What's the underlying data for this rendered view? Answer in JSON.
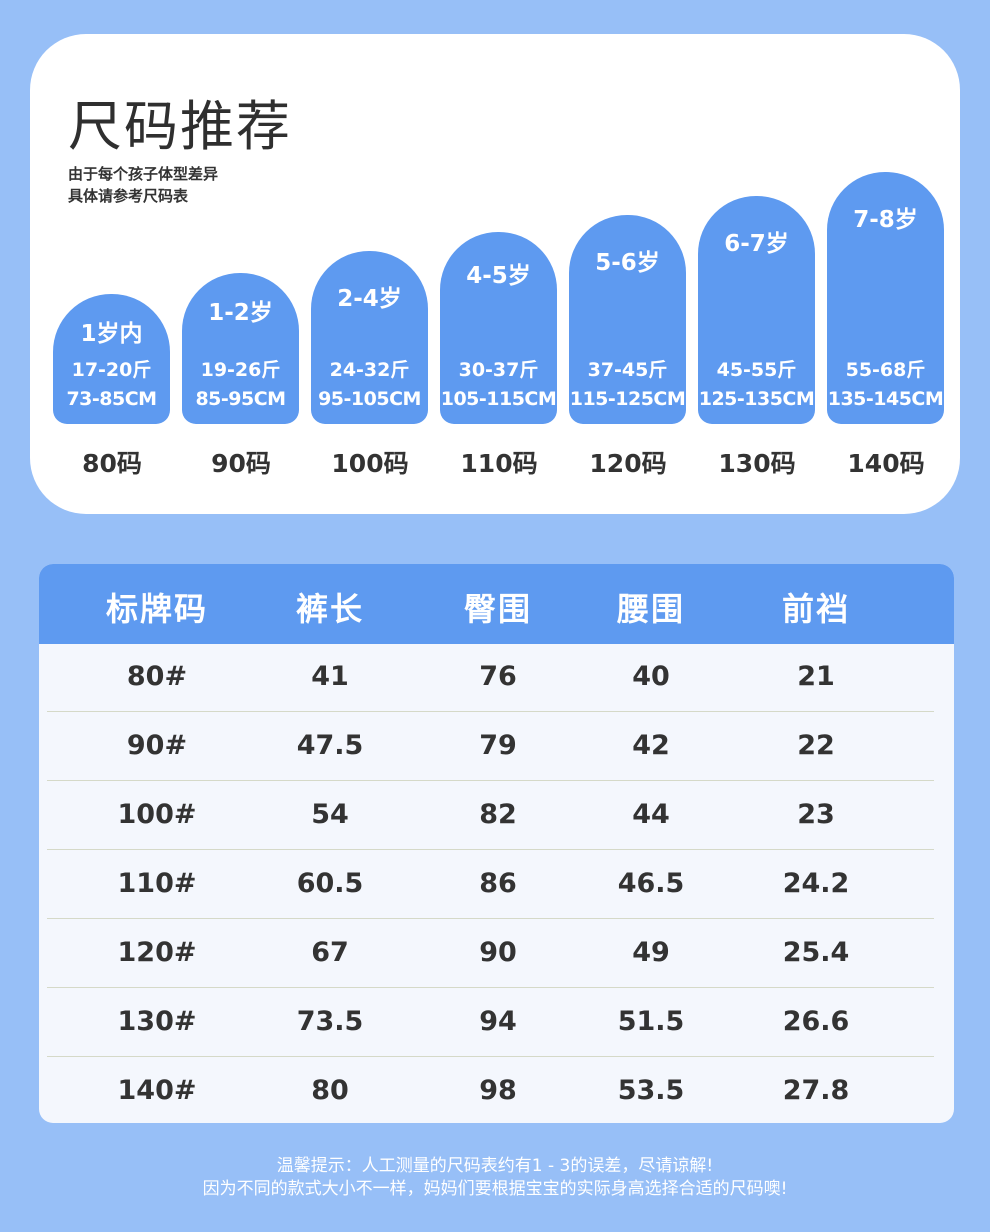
{
  "header": {
    "title": "尺码推荐",
    "subtitle_line1": "由于每个孩子体型差异",
    "subtitle_line2": "具体请参考尺码表"
  },
  "sizes": [
    {
      "age": "1岁内",
      "weight": "17-20斤",
      "height": "73-85CM",
      "size": "80码"
    },
    {
      "age": "1-2岁",
      "weight": "19-26斤",
      "height": "85-95CM",
      "size": "90码"
    },
    {
      "age": "2-4岁",
      "weight": "24-32斤",
      "height": "95-105CM",
      "size": "100码"
    },
    {
      "age": "4-5岁",
      "weight": "30-37斤",
      "height": "105-115CM",
      "size": "110码"
    },
    {
      "age": "5-6岁",
      "weight": "37-45斤",
      "height": "115-125CM",
      "size": "120码"
    },
    {
      "age": "6-7岁",
      "weight": "45-55斤",
      "height": "125-135CM",
      "size": "130码"
    },
    {
      "age": "7-8岁",
      "weight": "55-68斤",
      "height": "135-145CM",
      "size": "140码"
    }
  ],
  "table": {
    "headers": [
      "标牌码",
      "裤长",
      "臀围",
      "腰围",
      "前裆"
    ],
    "rows": [
      [
        "80#",
        "41",
        "76",
        "40",
        "21"
      ],
      [
        "90#",
        "47.5",
        "79",
        "42",
        "22"
      ],
      [
        "100#",
        "54",
        "82",
        "44",
        "23"
      ],
      [
        "110#",
        "60.5",
        "86",
        "46.5",
        "24.2"
      ],
      [
        "120#",
        "67",
        "90",
        "49",
        "25.4"
      ],
      [
        "130#",
        "73.5",
        "94",
        "51.5",
        "26.6"
      ],
      [
        "140#",
        "80",
        "98",
        "53.5",
        "27.8"
      ]
    ]
  },
  "notes": {
    "line1": "温馨提示：人工测量的尺码表约有1 - 3的误差，尽请谅解!",
    "line2": "因为不同的款式大小不一样，妈妈们要根据宝宝的实际身高选择合适的尺码噢!"
  },
  "colors": {
    "background": "#97bff7",
    "accent": "#5e9af0",
    "card": "#ffffff",
    "table_body": "#f4f7fd"
  }
}
